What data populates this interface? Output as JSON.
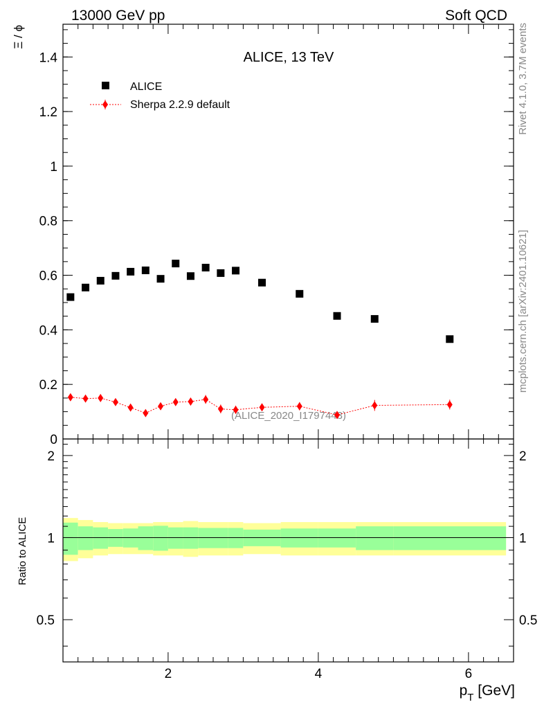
{
  "header": {
    "left": "13000 GeV pp",
    "right": "Soft QCD",
    "title": "ALICE, 13 TeV",
    "watermark": "(ALICE_2020_I1797443)",
    "side_top": "Rivet 4.1.0,  3.7M events",
    "side_bottom": "mcplots.cern.ch [arXiv:2401.10621]"
  },
  "chart_data": {
    "type": "scatter",
    "title": "ALICE, 13 TeV",
    "xlabel_main": "p",
    "xlabel_sub": "T",
    "xlabel_unit": " [GeV]",
    "ylabel": "Ξ / ϕ",
    "ratio_ylabel": "Ratio to ALICE",
    "xlim": [
      0.6,
      6.6
    ],
    "ylim": [
      0,
      1.52
    ],
    "ratio_ylim": [
      0.35,
      2.3
    ],
    "x_ticks": [
      2,
      4,
      6
    ],
    "x_tick_labels": [
      "2",
      "4",
      "6"
    ],
    "y_ticks": [
      0,
      0.2,
      0.4,
      0.6,
      0.8,
      1,
      1.2,
      1.4
    ],
    "y_tick_labels": [
      "0",
      "0.2",
      "0.4",
      "0.6",
      "0.8",
      "1",
      "1.2",
      "1.4"
    ],
    "ratio_ticks": [
      0.5,
      1,
      2
    ],
    "ratio_tick_labels": [
      "0.5",
      "1",
      "2"
    ],
    "legend": [
      {
        "name": "ALICE",
        "marker": "square",
        "color": "#000000"
      },
      {
        "name": "Sherpa 2.2.9 default",
        "marker": "diamond",
        "color": "#ff0000"
      }
    ],
    "bins": [
      {
        "x": 0.7,
        "lo": 0.6,
        "hi": 0.8
      },
      {
        "x": 0.9,
        "lo": 0.8,
        "hi": 1.0
      },
      {
        "x": 1.1,
        "lo": 1.0,
        "hi": 1.2
      },
      {
        "x": 1.3,
        "lo": 1.2,
        "hi": 1.4
      },
      {
        "x": 1.5,
        "lo": 1.4,
        "hi": 1.6
      },
      {
        "x": 1.7,
        "lo": 1.6,
        "hi": 1.8
      },
      {
        "x": 1.9,
        "lo": 1.8,
        "hi": 2.0
      },
      {
        "x": 2.1,
        "lo": 2.0,
        "hi": 2.2
      },
      {
        "x": 2.3,
        "lo": 2.2,
        "hi": 2.4
      },
      {
        "x": 2.5,
        "lo": 2.4,
        "hi": 2.6
      },
      {
        "x": 2.7,
        "lo": 2.6,
        "hi": 2.8
      },
      {
        "x": 2.9,
        "lo": 2.8,
        "hi": 3.0
      },
      {
        "x": 3.25,
        "lo": 3.0,
        "hi": 3.5
      },
      {
        "x": 3.75,
        "lo": 3.5,
        "hi": 4.0
      },
      {
        "x": 4.25,
        "lo": 4.0,
        "hi": 4.5
      },
      {
        "x": 4.75,
        "lo": 4.5,
        "hi": 5.0
      },
      {
        "x": 5.75,
        "lo": 5.0,
        "hi": 6.5
      }
    ],
    "series": [
      {
        "name": "ALICE",
        "values": [
          0.52,
          0.555,
          0.58,
          0.598,
          0.613,
          0.618,
          0.587,
          0.643,
          0.597,
          0.628,
          0.608,
          0.617,
          0.573,
          0.532,
          0.451,
          0.44,
          0.366
        ]
      },
      {
        "name": "Sherpa 2.2.9 default",
        "values": [
          0.153,
          0.148,
          0.15,
          0.135,
          0.115,
          0.095,
          0.12,
          0.135,
          0.137,
          0.145,
          0.11,
          0.107,
          0.116,
          0.12,
          0.088,
          0.123,
          0.126
        ],
        "errors": [
          0.008,
          0.008,
          0.009,
          0.01,
          0.011,
          0.011,
          0.012,
          0.013,
          0.014,
          0.016,
          0.016,
          0.015,
          0.013,
          0.015,
          0.014,
          0.02,
          0.018
        ]
      }
    ],
    "ratio_band": {
      "inner_half": [
        0.135,
        0.1,
        0.09,
        0.075,
        0.08,
        0.1,
        0.105,
        0.09,
        0.09,
        0.085,
        0.085,
        0.085,
        0.07,
        0.08,
        0.08,
        0.1,
        0.1
      ],
      "outer_half": [
        0.18,
        0.16,
        0.14,
        0.13,
        0.13,
        0.13,
        0.14,
        0.14,
        0.15,
        0.14,
        0.14,
        0.14,
        0.13,
        0.14,
        0.14,
        0.14,
        0.14
      ]
    },
    "colors": {
      "data": "#000000",
      "mc": "#ff0000",
      "band_inner": "#99ff99",
      "band_outer": "#ffff99",
      "watermark": "#888888",
      "side_text": "#888888"
    }
  }
}
